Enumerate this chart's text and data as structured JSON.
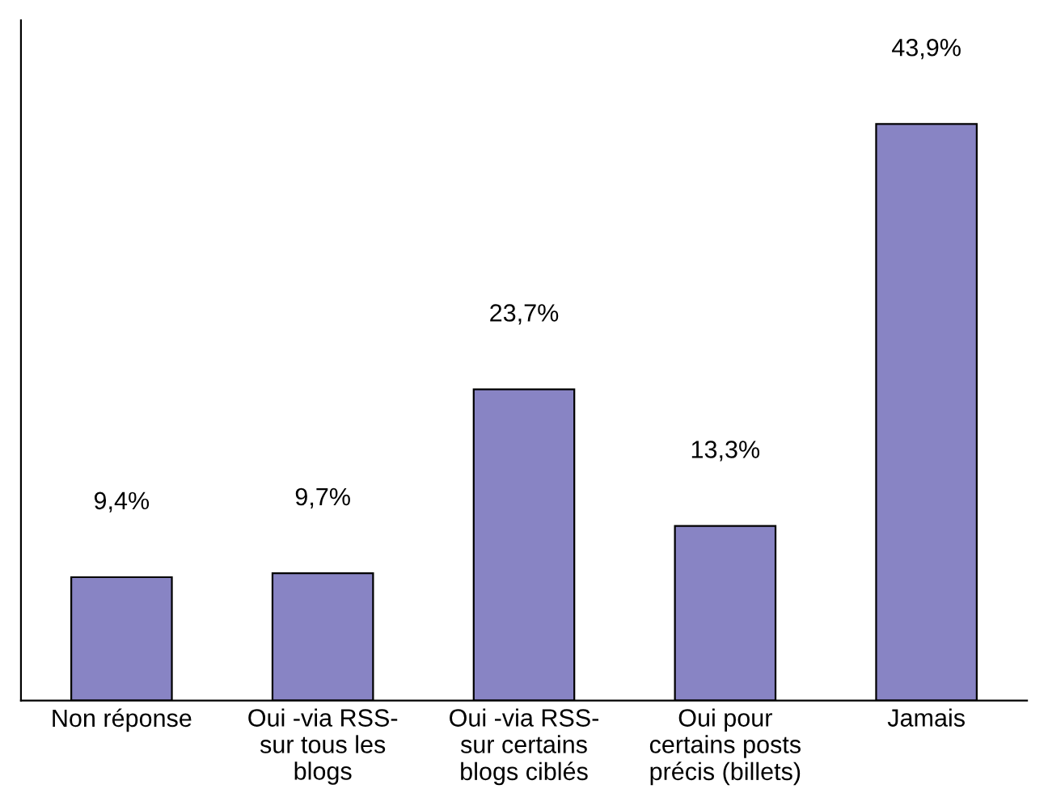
{
  "chart_data": {
    "type": "bar",
    "categories": [
      "Non réponse",
      "Oui -via RSS-\nsur tous les\nblogs",
      "Oui -via RSS-\nsur certains\nblogs ciblés",
      "Oui pour\ncertains posts\nprécis (billets)",
      "Jamais"
    ],
    "values": [
      9.4,
      9.7,
      23.7,
      13.3,
      43.9
    ],
    "value_labels": [
      "9,4%",
      "9,7%",
      "23,7%",
      "13,3%",
      "43,9%"
    ],
    "color": "#8884c4",
    "tick_labels": "x",
    "grid": false
  }
}
